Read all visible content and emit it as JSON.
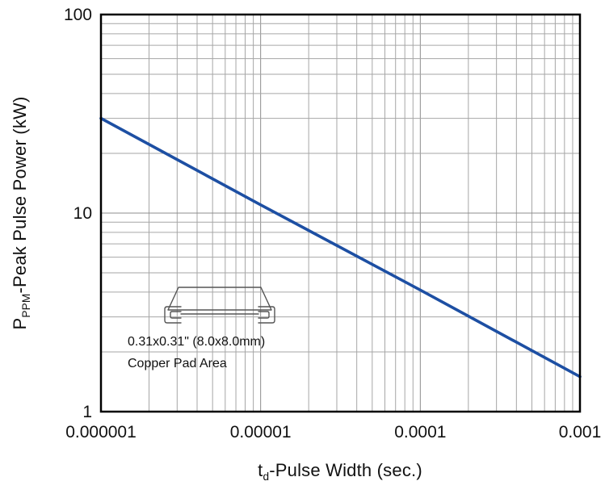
{
  "axes": {
    "y": {
      "pre": "P",
      "sub": "PPM",
      "post": "-Peak Pulse Power (kW)"
    },
    "x": {
      "pre": "t",
      "sub": "d",
      "post": "-Pulse Width (sec.)"
    }
  },
  "annotation": {
    "line1": "0.31x0.31\" (8.0x8.0mm)",
    "line2": "Copper Pad Area"
  },
  "chart_data": {
    "type": "line",
    "x_scale": "log",
    "y_scale": "log",
    "xlim": [
      1e-06,
      0.001
    ],
    "ylim": [
      1,
      100
    ],
    "xlabel": "t_d-Pulse Width (sec.)",
    "ylabel": "P_PPM-Peak Pulse Power (kW)",
    "grid": true,
    "x_ticks": [
      {
        "v": 1e-06,
        "label": "0.000001"
      },
      {
        "v": 1e-05,
        "label": "0.00001"
      },
      {
        "v": 0.0001,
        "label": "0.0001"
      },
      {
        "v": 0.001,
        "label": "0.001"
      }
    ],
    "y_ticks": [
      {
        "v": 1,
        "label": "1"
      },
      {
        "v": 10,
        "label": "10"
      },
      {
        "v": 100,
        "label": "100"
      }
    ],
    "series": [
      {
        "name": "Peak Pulse Power",
        "color": "#1d4fa3",
        "points": [
          {
            "x": 1e-06,
            "y": 30
          },
          {
            "x": 1e-05,
            "y": 11
          },
          {
            "x": 0.0001,
            "y": 4.1
          },
          {
            "x": 0.001,
            "y": 1.5
          }
        ]
      }
    ],
    "colors": {
      "line": "#1d4fa3",
      "grid_minor": "#a6a6a6",
      "grid_major": "#8c8c8c",
      "frame": "#000000",
      "text": "#111111"
    }
  }
}
